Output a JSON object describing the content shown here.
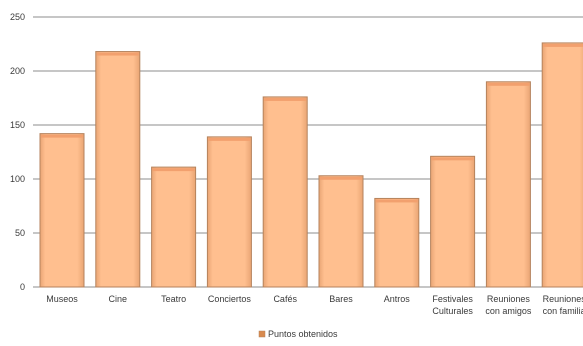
{
  "chart_data": {
    "type": "bar",
    "title": "",
    "xlabel": "",
    "ylabel": "",
    "ylim": [
      0,
      250
    ],
    "yticks": [
      "0",
      "50",
      "100",
      "150",
      "200",
      "250"
    ],
    "grid": true,
    "legend_position": "bottom",
    "categories": [
      [
        "Museos"
      ],
      [
        "Cine"
      ],
      [
        "Teatro"
      ],
      [
        "Conciertos"
      ],
      [
        "Cafés"
      ],
      [
        "Bares"
      ],
      [
        "Antros"
      ],
      [
        "Festivales",
        "Culturales"
      ],
      [
        "Reuniones",
        "con amigos"
      ],
      [
        "Reuniones",
        "con familia"
      ]
    ],
    "series": [
      {
        "name": "Puntos obtenidos",
        "values": [
          142,
          218,
          111,
          139,
          176,
          103,
          82,
          121,
          190,
          226
        ]
      }
    ],
    "colors": {
      "bar_fill": "#FFBF8F",
      "bar_edge": "#B5825C",
      "bar_top": "#F2A06E",
      "legend_swatch": "#D88A4E",
      "gridline": "#8C8C8C",
      "axis_text": "#3A3A3A"
    }
  }
}
